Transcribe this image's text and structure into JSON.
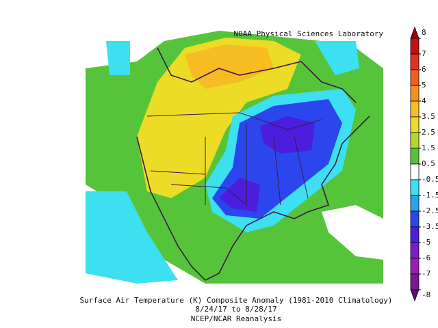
{
  "header": {
    "credit": "NOAA Physical Sciences Laboratory"
  },
  "footer": {
    "title": "Surface Air Temperature (K) Composite Anomaly (1981-2010 Climatology)",
    "dates": "8/24/17 to 8/28/17",
    "source": "NCEP/NCAR Reanalysis"
  },
  "colorbar": {
    "ticks": [
      8,
      7,
      6,
      5,
      4,
      3.5,
      2.5,
      1.5,
      0.5,
      -0.5,
      -1.5,
      -2.5,
      -3.5,
      -5,
      -6,
      -7,
      -8
    ],
    "colors": [
      "#c41010",
      "#e43020",
      "#f06020",
      "#f5921e",
      "#f5bd22",
      "#ecdc26",
      "#b4d82a",
      "#56c43a",
      "#ffffff",
      "#3ce0f0",
      "#2aa4ee",
      "#2c46ee",
      "#4a1edc",
      "#7a1ccc",
      "#9c1cb8",
      "#7a1890"
    ],
    "top_color": "#a00000",
    "bottom_color": "#5a1070"
  }
}
